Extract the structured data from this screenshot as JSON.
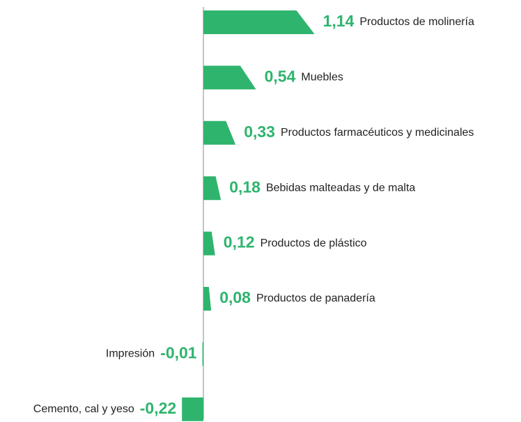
{
  "chart_data": {
    "type": "bar",
    "orientation": "horizontal",
    "color": "#2fb46e",
    "categories": [
      "Productos de molinería",
      "Muebles",
      "Productos farmacéuticos y medicinales",
      "Bebidas malteadas y de malta",
      "Productos de plástico",
      "Productos de panadería",
      "Impresión",
      "Cemento, cal y yeso"
    ],
    "values": [
      1.14,
      0.54,
      0.33,
      0.18,
      0.12,
      0.08,
      -0.01,
      -0.22
    ],
    "value_labels": [
      "1,14",
      "0,54",
      "0,33",
      "0,18",
      "0,12",
      "0,08",
      "-0,01",
      "-0,22"
    ]
  }
}
